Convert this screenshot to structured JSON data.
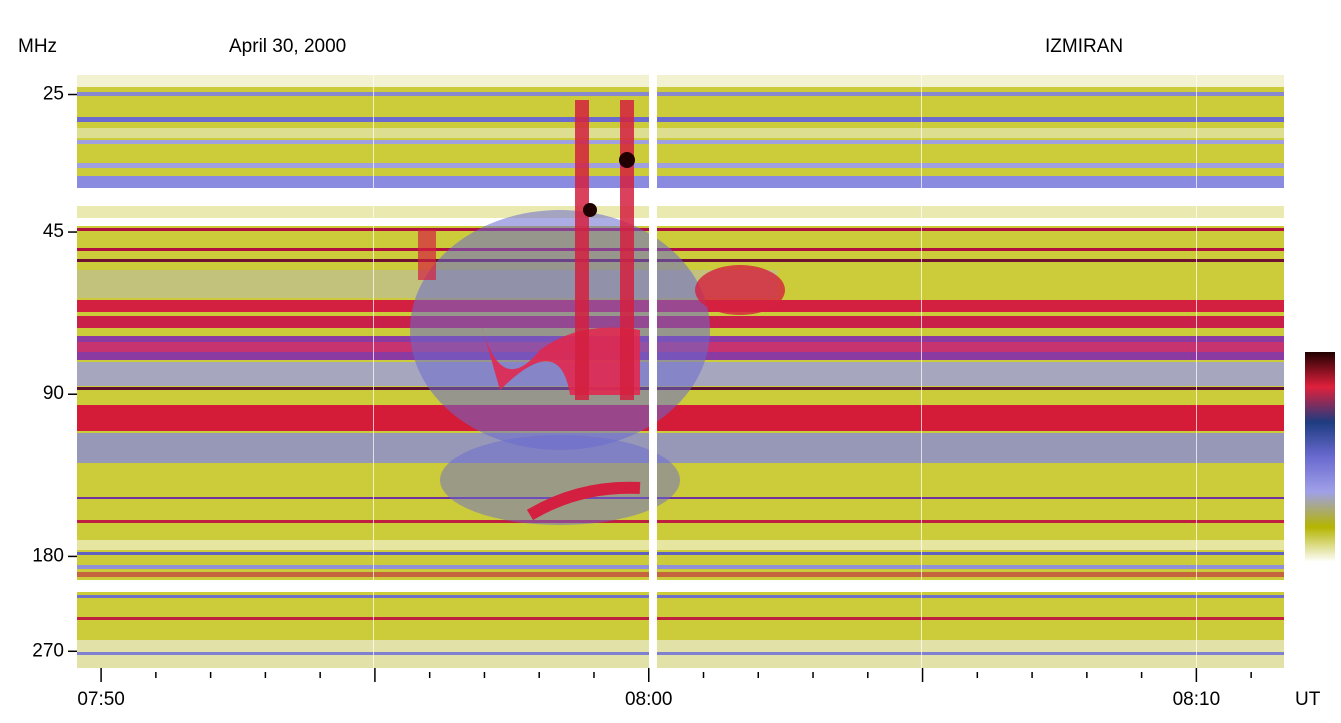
{
  "chart_data": {
    "type": "spectrogram",
    "title": "April 30, 2000",
    "observatory": "IZMIRAN",
    "ylabel": "MHz",
    "xlabel": "UT",
    "ylog": true,
    "yinverted": true,
    "ylim": [
      23,
      290
    ],
    "yticks": [
      25,
      45,
      90,
      180,
      270
    ],
    "xlim": [
      469.56,
      491.6
    ],
    "xticks": [
      {
        "value": 470,
        "label": "07:50"
      },
      {
        "value": 480,
        "label": "08:00"
      },
      {
        "value": 490,
        "label": "08:10"
      }
    ],
    "xmidticks": [
      475,
      485
    ],
    "xminorticks": [
      471,
      472,
      473,
      474,
      476,
      477,
      478,
      479,
      481,
      482,
      483,
      484,
      486,
      487,
      488,
      489,
      491
    ],
    "colormap": [
      "#200000",
      "#e0203c",
      "#1e3c80",
      "#6a6ad0",
      "#a0a0e8",
      "#b4b400",
      "#ffffff"
    ]
  }
}
